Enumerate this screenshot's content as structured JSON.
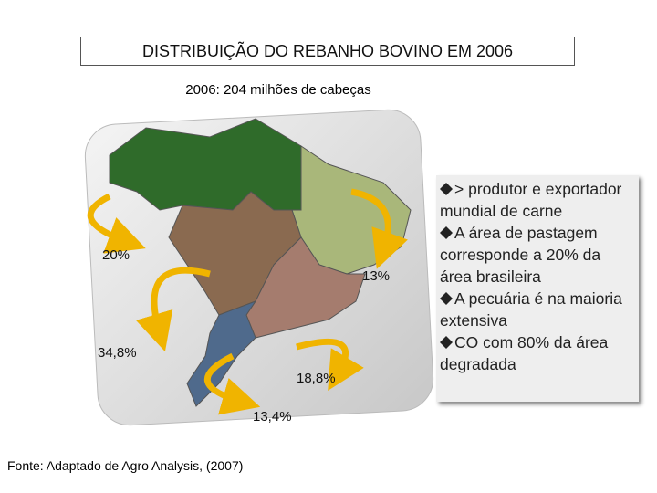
{
  "title": "DISTRIBUIÇÃO DO REBANHO BOVINO EM 2006",
  "subtitle": "2006: 204 milhões de cabeças",
  "regions": [
    {
      "label": "20%"
    },
    {
      "label": "13%"
    },
    {
      "label": "34,8%"
    },
    {
      "label": "18,8%"
    },
    {
      "label": "13,4%"
    }
  ],
  "bullets": [
    "> produtor e exportador mundial de carne",
    "A área de pastagem corresponde a 20% da área brasileira",
    "A pecuária é na maioria extensiva",
    "CO com 80% da área degradada"
  ],
  "source": "Fonte: Adaptado de Agro Analysis, (2007)"
}
